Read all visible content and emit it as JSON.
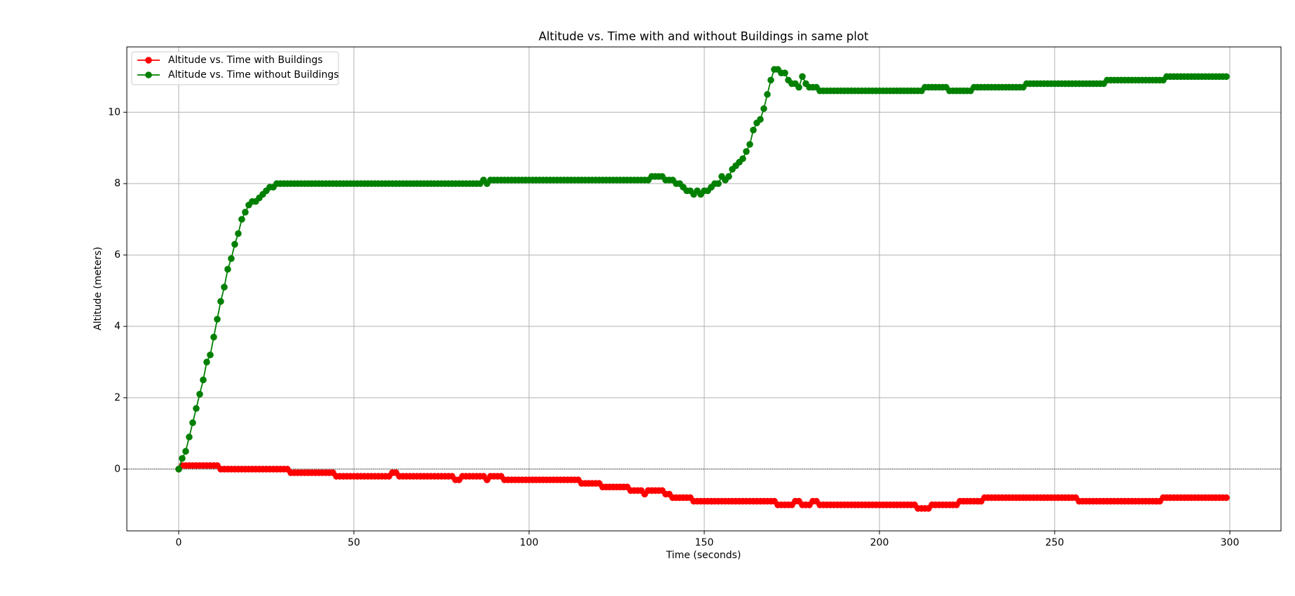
{
  "chart_data": {
    "type": "line",
    "title": "Altitude vs. Time with and without Buildings in same plot",
    "x_label": "Time (seconds)",
    "y_label": "Altitude (meters)",
    "x": [
      0,
      1,
      2,
      3,
      4,
      5,
      6,
      7,
      8,
      9,
      10,
      11,
      12,
      13,
      14,
      15,
      16,
      17,
      18,
      19,
      20,
      21,
      22,
      23,
      24,
      25,
      26,
      27,
      28,
      29,
      30,
      31,
      32,
      33,
      34,
      35,
      36,
      37,
      38,
      39,
      40,
      41,
      42,
      43,
      44,
      45,
      46,
      47,
      48,
      49,
      50,
      51,
      52,
      53,
      54,
      55,
      56,
      57,
      58,
      59,
      60,
      61,
      62,
      63,
      64,
      65,
      66,
      67,
      68,
      69,
      70,
      71,
      72,
      73,
      74,
      75,
      76,
      77,
      78,
      79,
      80,
      81,
      82,
      83,
      84,
      85,
      86,
      87,
      88,
      89,
      90,
      91,
      92,
      93,
      94,
      95,
      96,
      97,
      98,
      99,
      100,
      101,
      102,
      103,
      104,
      105,
      106,
      107,
      108,
      109,
      110,
      111,
      112,
      113,
      114,
      115,
      116,
      117,
      118,
      119,
      120,
      121,
      122,
      123,
      124,
      125,
      126,
      127,
      128,
      129,
      130,
      131,
      132,
      133,
      134,
      135,
      136,
      137,
      138,
      139,
      140,
      141,
      142,
      143,
      144,
      145,
      146,
      147,
      148,
      149,
      150,
      151,
      152,
      153,
      154,
      155,
      156,
      157,
      158,
      159,
      160,
      161,
      162,
      163,
      164,
      165,
      166,
      167,
      168,
      169,
      170,
      171,
      172,
      173,
      174,
      175,
      176,
      177,
      178,
      179,
      180,
      181,
      182,
      183,
      184,
      185,
      186,
      187,
      188,
      189,
      190,
      191,
      192,
      193,
      194,
      195,
      196,
      197,
      198,
      199,
      200,
      201,
      202,
      203,
      204,
      205,
      206,
      207,
      208,
      209,
      210,
      211,
      212,
      213,
      214,
      215,
      216,
      217,
      218,
      219,
      220,
      221,
      222,
      223,
      224,
      225,
      226,
      227,
      228,
      229,
      230,
      231,
      232,
      233,
      234,
      235,
      236,
      237,
      238,
      239,
      240,
      241,
      242,
      243,
      244,
      245,
      246,
      247,
      248,
      249,
      250,
      251,
      252,
      253,
      254,
      255,
      256,
      257,
      258,
      259,
      260,
      261,
      262,
      263,
      264,
      265,
      266,
      267,
      268,
      269,
      270,
      271,
      272,
      273,
      274,
      275,
      276,
      277,
      278,
      279,
      280,
      281,
      282,
      283,
      284,
      285,
      286,
      287,
      288,
      289,
      290,
      291,
      292,
      293,
      294,
      295,
      296,
      297,
      298,
      299
    ],
    "series": [
      {
        "name": "Altitude vs. Time with Buildings",
        "color": "#ff0000",
        "values": [
          0,
          0.1,
          0.1,
          0.1,
          0.1,
          0.1,
          0.1,
          0.1,
          0.1,
          0.1,
          0.1,
          0.1,
          0,
          0,
          0,
          0,
          0,
          0,
          0,
          0,
          0,
          0,
          0,
          0,
          0,
          0,
          0,
          0,
          0,
          0,
          0,
          0,
          -0.1,
          -0.1,
          -0.1,
          -0.1,
          -0.1,
          -0.1,
          -0.1,
          -0.1,
          -0.1,
          -0.1,
          -0.1,
          -0.1,
          -0.1,
          -0.2,
          -0.2,
          -0.2,
          -0.2,
          -0.2,
          -0.2,
          -0.2,
          -0.2,
          -0.2,
          -0.2,
          -0.2,
          -0.2,
          -0.2,
          -0.2,
          -0.2,
          -0.2,
          -0.1,
          -0.1,
          -0.2,
          -0.2,
          -0.2,
          -0.2,
          -0.2,
          -0.2,
          -0.2,
          -0.2,
          -0.2,
          -0.2,
          -0.2,
          -0.2,
          -0.2,
          -0.2,
          -0.2,
          -0.2,
          -0.3,
          -0.3,
          -0.2,
          -0.2,
          -0.2,
          -0.2,
          -0.2,
          -0.2,
          -0.2,
          -0.3,
          -0.2,
          -0.2,
          -0.2,
          -0.2,
          -0.3,
          -0.3,
          -0.3,
          -0.3,
          -0.3,
          -0.3,
          -0.3,
          -0.3,
          -0.3,
          -0.3,
          -0.3,
          -0.3,
          -0.3,
          -0.3,
          -0.3,
          -0.3,
          -0.3,
          -0.3,
          -0.3,
          -0.3,
          -0.3,
          -0.3,
          -0.4,
          -0.4,
          -0.4,
          -0.4,
          -0.4,
          -0.4,
          -0.5,
          -0.5,
          -0.5,
          -0.5,
          -0.5,
          -0.5,
          -0.5,
          -0.5,
          -0.6,
          -0.6,
          -0.6,
          -0.6,
          -0.7,
          -0.6,
          -0.6,
          -0.6,
          -0.6,
          -0.6,
          -0.7,
          -0.7,
          -0.8,
          -0.8,
          -0.8,
          -0.8,
          -0.8,
          -0.8,
          -0.9,
          -0.9,
          -0.9,
          -0.9,
          -0.9,
          -0.9,
          -0.9,
          -0.9,
          -0.9,
          -0.9,
          -0.9,
          -0.9,
          -0.9,
          -0.9,
          -0.9,
          -0.9,
          -0.9,
          -0.9,
          -0.9,
          -0.9,
          -0.9,
          -0.9,
          -0.9,
          -0.9,
          -1.0,
          -1.0,
          -1.0,
          -1.0,
          -1.0,
          -0.9,
          -0.9,
          -1.0,
          -1.0,
          -1.0,
          -0.9,
          -0.9,
          -1.0,
          -1.0,
          -1.0,
          -1.0,
          -1.0,
          -1.0,
          -1.0,
          -1.0,
          -1.0,
          -1.0,
          -1.0,
          -1.0,
          -1.0,
          -1.0,
          -1.0,
          -1.0,
          -1.0,
          -1.0,
          -1.0,
          -1.0,
          -1.0,
          -1.0,
          -1.0,
          -1.0,
          -1.0,
          -1.0,
          -1.0,
          -1.0,
          -1.1,
          -1.1,
          -1.1,
          -1.1,
          -1.0,
          -1.0,
          -1.0,
          -1.0,
          -1.0,
          -1.0,
          -1.0,
          -1.0,
          -0.9,
          -0.9,
          -0.9,
          -0.9,
          -0.9,
          -0.9,
          -0.9,
          -0.8,
          -0.8,
          -0.8,
          -0.8,
          -0.8,
          -0.8,
          -0.8,
          -0.8,
          -0.8,
          -0.8,
          -0.8,
          -0.8,
          -0.8,
          -0.8,
          -0.8,
          -0.8,
          -0.8,
          -0.8,
          -0.8,
          -0.8,
          -0.8,
          -0.8,
          -0.8,
          -0.8,
          -0.8,
          -0.8,
          -0.8,
          -0.9,
          -0.9,
          -0.9,
          -0.9,
          -0.9,
          -0.9,
          -0.9,
          -0.9,
          -0.9,
          -0.9,
          -0.9,
          -0.9,
          -0.9,
          -0.9,
          -0.9,
          -0.9,
          -0.9,
          -0.9,
          -0.9,
          -0.9,
          -0.9,
          -0.9,
          -0.9,
          -0.9,
          -0.8,
          -0.8,
          -0.8,
          -0.8,
          -0.8,
          -0.8,
          -0.8,
          -0.8,
          -0.8,
          -0.8,
          -0.8,
          -0.8,
          -0.8,
          -0.8,
          -0.8,
          -0.8,
          -0.8,
          -0.8,
          -0.8
        ]
      },
      {
        "name": "Altitude vs. Time without Buildings",
        "color": "#008000",
        "values": [
          0,
          0.3,
          0.5,
          0.9,
          1.3,
          1.7,
          2.1,
          2.5,
          3.0,
          3.2,
          3.7,
          4.2,
          4.7,
          5.1,
          5.6,
          5.9,
          6.3,
          6.6,
          7.0,
          7.2,
          7.4,
          7.5,
          7.5,
          7.6,
          7.7,
          7.8,
          7.9,
          7.9,
          8.0,
          8.0,
          8.0,
          8.0,
          8.0,
          8.0,
          8.0,
          8.0,
          8.0,
          8.0,
          8.0,
          8.0,
          8.0,
          8.0,
          8.0,
          8.0,
          8.0,
          8.0,
          8.0,
          8.0,
          8.0,
          8.0,
          8.0,
          8.0,
          8.0,
          8.0,
          8.0,
          8.0,
          8.0,
          8.0,
          8.0,
          8.0,
          8.0,
          8.0,
          8.0,
          8.0,
          8.0,
          8.0,
          8.0,
          8.0,
          8.0,
          8.0,
          8.0,
          8.0,
          8.0,
          8.0,
          8.0,
          8.0,
          8.0,
          8.0,
          8.0,
          8.0,
          8.0,
          8.0,
          8.0,
          8.0,
          8.0,
          8.0,
          8.0,
          8.1,
          8.0,
          8.1,
          8.1,
          8.1,
          8.1,
          8.1,
          8.1,
          8.1,
          8.1,
          8.1,
          8.1,
          8.1,
          8.1,
          8.1,
          8.1,
          8.1,
          8.1,
          8.1,
          8.1,
          8.1,
          8.1,
          8.1,
          8.1,
          8.1,
          8.1,
          8.1,
          8.1,
          8.1,
          8.1,
          8.1,
          8.1,
          8.1,
          8.1,
          8.1,
          8.1,
          8.1,
          8.1,
          8.1,
          8.1,
          8.1,
          8.1,
          8.1,
          8.1,
          8.1,
          8.1,
          8.1,
          8.1,
          8.2,
          8.2,
          8.2,
          8.2,
          8.1,
          8.1,
          8.1,
          8.0,
          8.0,
          7.9,
          7.8,
          7.8,
          7.7,
          7.8,
          7.7,
          7.8,
          7.8,
          7.9,
          8.0,
          8.0,
          8.2,
          8.1,
          8.2,
          8.4,
          8.5,
          8.6,
          8.7,
          8.9,
          9.1,
          9.5,
          9.7,
          9.8,
          10.1,
          10.5,
          10.9,
          11.2,
          11.2,
          11.1,
          11.1,
          10.9,
          10.8,
          10.8,
          10.7,
          11.0,
          10.8,
          10.7,
          10.7,
          10.7,
          10.6,
          10.6,
          10.6,
          10.6,
          10.6,
          10.6,
          10.6,
          10.6,
          10.6,
          10.6,
          10.6,
          10.6,
          10.6,
          10.6,
          10.6,
          10.6,
          10.6,
          10.6,
          10.6,
          10.6,
          10.6,
          10.6,
          10.6,
          10.6,
          10.6,
          10.6,
          10.6,
          10.6,
          10.6,
          10.6,
          10.7,
          10.7,
          10.7,
          10.7,
          10.7,
          10.7,
          10.7,
          10.6,
          10.6,
          10.6,
          10.6,
          10.6,
          10.6,
          10.6,
          10.7,
          10.7,
          10.7,
          10.7,
          10.7,
          10.7,
          10.7,
          10.7,
          10.7,
          10.7,
          10.7,
          10.7,
          10.7,
          10.7,
          10.7,
          10.8,
          10.8,
          10.8,
          10.8,
          10.8,
          10.8,
          10.8,
          10.8,
          10.8,
          10.8,
          10.8,
          10.8,
          10.8,
          10.8,
          10.8,
          10.8,
          10.8,
          10.8,
          10.8,
          10.8,
          10.8,
          10.8,
          10.8,
          10.9,
          10.9,
          10.9,
          10.9,
          10.9,
          10.9,
          10.9,
          10.9,
          10.9,
          10.9,
          10.9,
          10.9,
          10.9,
          10.9,
          10.9,
          10.9,
          10.9,
          11.0,
          11.0,
          11.0,
          11.0,
          11.0,
          11.0,
          11.0,
          11.0,
          11.0,
          11.0,
          11.0,
          11.0,
          11.0,
          11.0,
          11.0,
          11.0,
          11.0,
          11.0
        ]
      }
    ],
    "xlim": [
      -14.8,
      314.6
    ],
    "ylim": [
      -1.73,
      11.83
    ],
    "xticks": [
      0,
      50,
      100,
      150,
      200,
      250,
      300
    ],
    "yticks": [
      0,
      2,
      4,
      6,
      8,
      10
    ],
    "reference_line": 0,
    "grid": true,
    "legend": "upper left"
  }
}
